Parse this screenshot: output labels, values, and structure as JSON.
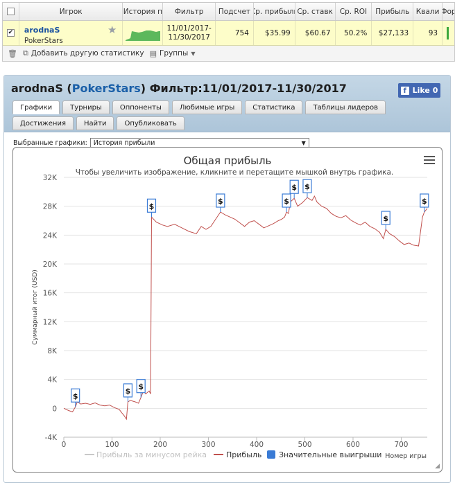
{
  "grid": {
    "headers": [
      "Игрок",
      "История п",
      "Фильтр",
      "Подсчет",
      "Ср. прибыль",
      "Ср. ставк",
      "Ср. ROI",
      "Прибыль",
      "Квали",
      "Фор"
    ],
    "row": {
      "player_name": "arodnaS",
      "site": "PokerStars",
      "filter_from": "11/01/2017-",
      "filter_to": "11/30/2017",
      "count": "754",
      "avg_profit": "$35.99",
      "avg_stake": "$60.67",
      "avg_roi": "50.2%",
      "profit": "$27,133",
      "qualify": "93"
    }
  },
  "toolbar": {
    "add_stats": "Добавить другую статистику",
    "groups": "Группы"
  },
  "panel": {
    "player": "arodnaS",
    "site": "PokerStars",
    "filter_label": "Фильтр:11/01/2017-11/30/2017",
    "like_label": "Like 0",
    "tabs": [
      "Графики",
      "Турниры",
      "Оппоненты",
      "Любимые игры",
      "Статистика",
      "Таблицы лидеров",
      "Достижения",
      "Найти",
      "Опубликовать"
    ],
    "active_tab": 0,
    "selected_label": "Выбранные графики:",
    "selected_value": "История прибыли"
  },
  "colors": {
    "profit_line": "#c0504d",
    "rake_line": "#c8c8c8",
    "big_wins": "#3a7bd5",
    "grid_line": "#e3e3e3"
  },
  "chart_data": {
    "type": "line",
    "title": "Общая прибыль",
    "subtitle": "Чтобы увеличить изображение, кликните и перетащите мышкой внутрь графика.",
    "xlabel": "Номер игры",
    "ylabel": "Суммарный итог (USD)",
    "xlim": [
      0,
      754
    ],
    "ylim": [
      -4000,
      32000
    ],
    "x_ticks": [
      0,
      100,
      200,
      300,
      400,
      500,
      600,
      700
    ],
    "y_ticks": [
      -4000,
      0,
      4000,
      8000,
      12000,
      16000,
      20000,
      24000,
      28000,
      32000
    ],
    "y_tick_labels": [
      "-4K",
      "0",
      "4K",
      "8K",
      "12K",
      "16K",
      "20K",
      "24K",
      "28K",
      "32K"
    ],
    "grid": true,
    "legend": "bottom",
    "legend_entries": [
      "Прибыль за минусом рейка",
      "Прибыль",
      "Значительные выигрыши"
    ],
    "series": [
      {
        "name": "Прибыль",
        "points": [
          [
            0,
            0
          ],
          [
            10,
            -300
          ],
          [
            18,
            -500
          ],
          [
            24,
            200
          ],
          [
            28,
            900
          ],
          [
            35,
            600
          ],
          [
            45,
            700
          ],
          [
            55,
            550
          ],
          [
            65,
            750
          ],
          [
            75,
            450
          ],
          [
            85,
            350
          ],
          [
            95,
            450
          ],
          [
            105,
            100
          ],
          [
            115,
            -150
          ],
          [
            120,
            -600
          ],
          [
            125,
            -1000
          ],
          [
            130,
            -1500
          ],
          [
            133,
            900
          ],
          [
            138,
            1100
          ],
          [
            148,
            900
          ],
          [
            155,
            700
          ],
          [
            160,
            1500
          ],
          [
            165,
            2400
          ],
          [
            170,
            2000
          ],
          [
            177,
            2400
          ],
          [
            180,
            2000
          ],
          [
            182,
            26500
          ],
          [
            192,
            25800
          ],
          [
            205,
            25400
          ],
          [
            215,
            25200
          ],
          [
            230,
            25500
          ],
          [
            245,
            25000
          ],
          [
            260,
            24500
          ],
          [
            275,
            24200
          ],
          [
            285,
            25200
          ],
          [
            295,
            24800
          ],
          [
            305,
            25200
          ],
          [
            315,
            26200
          ],
          [
            325,
            27200
          ],
          [
            335,
            26800
          ],
          [
            345,
            26500
          ],
          [
            355,
            26200
          ],
          [
            365,
            25700
          ],
          [
            375,
            25200
          ],
          [
            385,
            25800
          ],
          [
            395,
            26000
          ],
          [
            405,
            25500
          ],
          [
            415,
            25000
          ],
          [
            425,
            25300
          ],
          [
            435,
            25600
          ],
          [
            445,
            26000
          ],
          [
            452,
            26200
          ],
          [
            458,
            26500
          ],
          [
            462,
            27200
          ],
          [
            466,
            27000
          ],
          [
            470,
            28600
          ],
          [
            478,
            29100
          ],
          [
            485,
            28000
          ],
          [
            495,
            28500
          ],
          [
            505,
            29200
          ],
          [
            515,
            28800
          ],
          [
            520,
            29400
          ],
          [
            525,
            28600
          ],
          [
            535,
            28000
          ],
          [
            545,
            27700
          ],
          [
            555,
            27000
          ],
          [
            565,
            26600
          ],
          [
            575,
            26400
          ],
          [
            585,
            26700
          ],
          [
            595,
            26100
          ],
          [
            605,
            25700
          ],
          [
            615,
            25400
          ],
          [
            625,
            25800
          ],
          [
            635,
            25200
          ],
          [
            645,
            24900
          ],
          [
            655,
            24400
          ],
          [
            663,
            23500
          ],
          [
            668,
            24800
          ],
          [
            676,
            24200
          ],
          [
            686,
            23800
          ],
          [
            696,
            23200
          ],
          [
            706,
            22700
          ],
          [
            716,
            22900
          ],
          [
            726,
            22600
          ],
          [
            736,
            22500
          ],
          [
            744,
            26500
          ],
          [
            748,
            27200
          ],
          [
            754,
            27700
          ]
        ]
      }
    ],
    "big_wins": [
      {
        "x": 24,
        "y": 200,
        "label": "$"
      },
      {
        "x": 133,
        "y": 900,
        "label": "$"
      },
      {
        "x": 160,
        "y": 1500,
        "label": "$"
      },
      {
        "x": 182,
        "y": 26500,
        "label": "$"
      },
      {
        "x": 325,
        "y": 27200,
        "label": "$"
      },
      {
        "x": 462,
        "y": 27200,
        "label": "$"
      },
      {
        "x": 478,
        "y": 29100,
        "label": "$"
      },
      {
        "x": 505,
        "y": 29200,
        "label": "$"
      },
      {
        "x": 668,
        "y": 24800,
        "label": "$"
      },
      {
        "x": 748,
        "y": 27200,
        "label": "$"
      }
    ]
  }
}
